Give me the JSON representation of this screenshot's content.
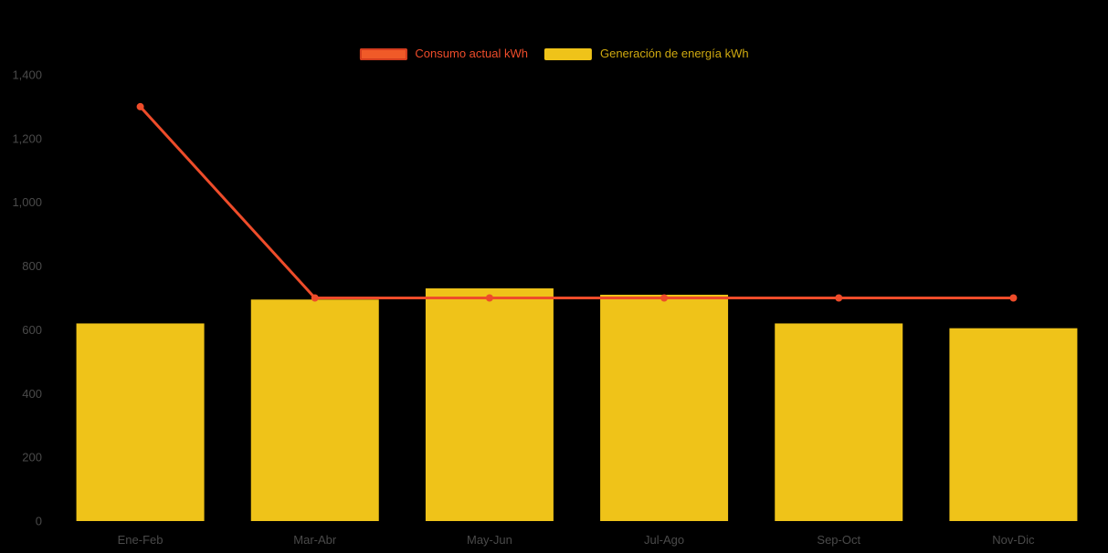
{
  "background": "#000000",
  "colors": {
    "line": "#ee4c2a",
    "bar": "#efc319",
    "axis_label": "#4a4a4a"
  },
  "legend": {
    "items": [
      {
        "label": "Consumo actual kWh",
        "color": "#f05a28",
        "border": "#d43d1e",
        "label_color": "#ee4c2a"
      },
      {
        "label": "Generación de energía kWh",
        "color": "#efc319",
        "border": "",
        "label_color": "#cfa90f"
      }
    ]
  },
  "chart_data": {
    "type": "bar",
    "title": "",
    "xlabel": "",
    "ylabel": "",
    "categories": [
      "Ene-Feb",
      "Mar-Abr",
      "May-Jun",
      "Jul-Ago",
      "Sep-Oct",
      "Nov-Dic"
    ],
    "series": [
      {
        "name": "Consumo actual kWh",
        "type": "line",
        "color": "#ee4c2a",
        "values": [
          1300,
          700,
          700,
          700,
          700,
          700
        ]
      },
      {
        "name": "Generación de energía kWh",
        "type": "bar",
        "color": "#efc319",
        "values": [
          620,
          695,
          730,
          710,
          620,
          605
        ]
      }
    ],
    "ylim": [
      0,
      1400
    ],
    "yticks": [
      0,
      200,
      400,
      600,
      800,
      1000,
      1200,
      1400
    ],
    "ytick_labels": [
      "0",
      "200",
      "400",
      "600",
      "800",
      "1,000",
      "1,200",
      "1,400"
    ],
    "grid": false,
    "legend_position": "top"
  }
}
